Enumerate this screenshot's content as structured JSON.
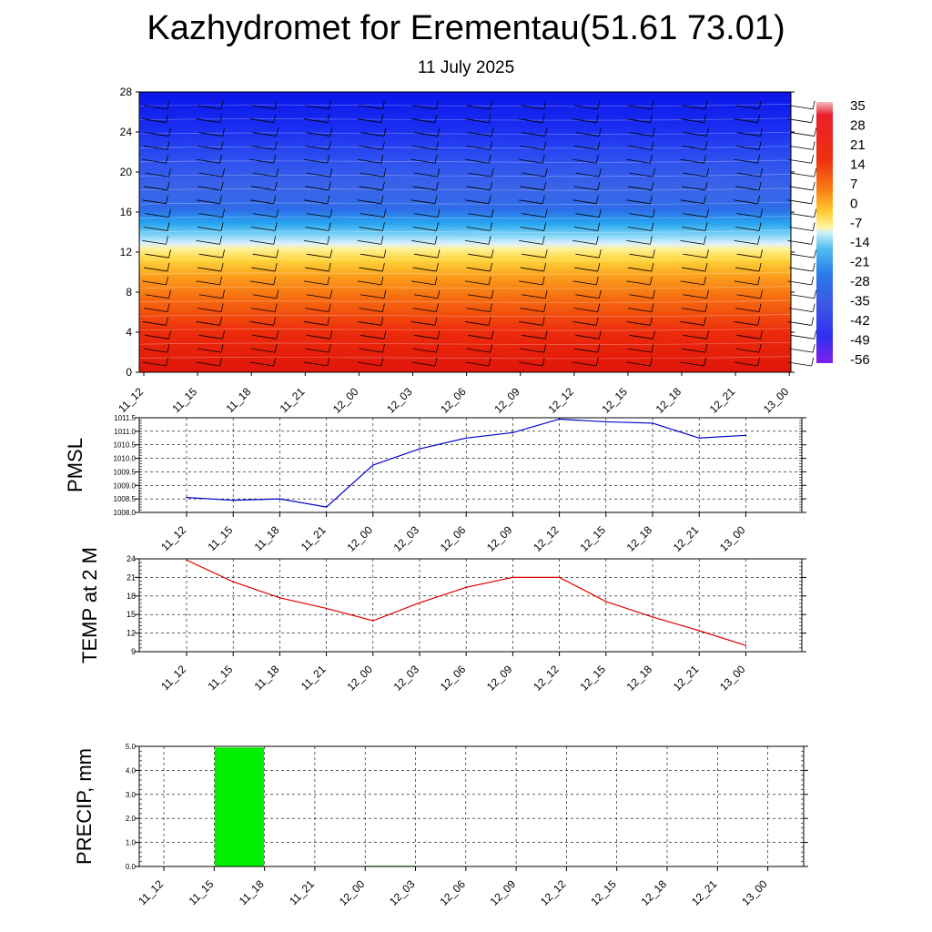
{
  "title": "Kazhydromet for Erementau(51.61 73.01)",
  "subtitle": "11 July 2025",
  "time_labels": [
    "11_12",
    "11_15",
    "11_18",
    "11_21",
    "12_00",
    "12_03",
    "12_06",
    "12_09",
    "12_12",
    "12_15",
    "12_18",
    "12_21",
    "13_00"
  ],
  "chart_data": [
    {
      "type": "heatmap",
      "yticks": [
        0,
        4,
        8,
        12,
        16,
        20,
        24,
        28
      ],
      "ylim": [
        0,
        28
      ],
      "colorbar_labels": [
        "35",
        "28",
        "21",
        "14",
        "7",
        "0",
        "-7",
        "-14",
        "-21",
        "-28",
        "-35",
        "-42",
        "-49",
        "-56"
      ],
      "colors": {
        "low_level": "#e31a0a",
        "mid_level": "#ffe84a",
        "high_level": "#2030ff",
        "top_level": "#0a14e8"
      },
      "wind_barbs": true
    },
    {
      "type": "line",
      "ylabel": "PMSL",
      "x": [
        "11_12",
        "11_15",
        "11_18",
        "11_21",
        "12_00",
        "12_03",
        "12_06",
        "12_09",
        "12_12",
        "12_15",
        "12_18",
        "12_21",
        "13_00"
      ],
      "values": [
        1008.55,
        1008.45,
        1008.5,
        1008.2,
        1009.75,
        1010.35,
        1010.75,
        1010.95,
        1011.45,
        1011.35,
        1011.3,
        1010.75,
        1010.85
      ],
      "ylim": [
        1008.0,
        1011.5
      ],
      "yticks": [
        "1008.0",
        "1008.5",
        "1009.0",
        "1009.5",
        "1010.0",
        "1010.5",
        "1011.0",
        "1011.5"
      ],
      "color": "#0000cc",
      "grid": true
    },
    {
      "type": "line",
      "ylabel": "TEMP at 2 M",
      "x": [
        "11_12",
        "11_15",
        "11_18",
        "11_21",
        "12_00",
        "12_03",
        "12_06",
        "12_09",
        "12_12",
        "12_15",
        "12_18",
        "12_21",
        "13_00"
      ],
      "values": [
        23.8,
        20.3,
        17.7,
        16.0,
        14.0,
        16.9,
        19.4,
        21.0,
        21.0,
        17.1,
        14.6,
        12.4,
        10.0
      ],
      "ylim": [
        9,
        24
      ],
      "yticks": [
        "9",
        "12",
        "15",
        "18",
        "21",
        "24"
      ],
      "color": "#dd0000",
      "grid": true
    },
    {
      "type": "bar",
      "ylabel": "PRECIP, mm",
      "x": [
        "11_12",
        "11_15",
        "11_18",
        "11_21",
        "12_00",
        "12_03",
        "12_06",
        "12_09",
        "12_12",
        "12_15",
        "12_18",
        "12_21",
        "13_00"
      ],
      "values": [
        0,
        4.95,
        0,
        0,
        0.03,
        0,
        0,
        0,
        0,
        0,
        0,
        0,
        0
      ],
      "ylim": [
        0,
        5
      ],
      "yticks": [
        "0.0",
        "1.0",
        "2.0",
        "3.0",
        "4.0",
        "5.0"
      ],
      "color": "#00ee00",
      "grid": true
    }
  ]
}
